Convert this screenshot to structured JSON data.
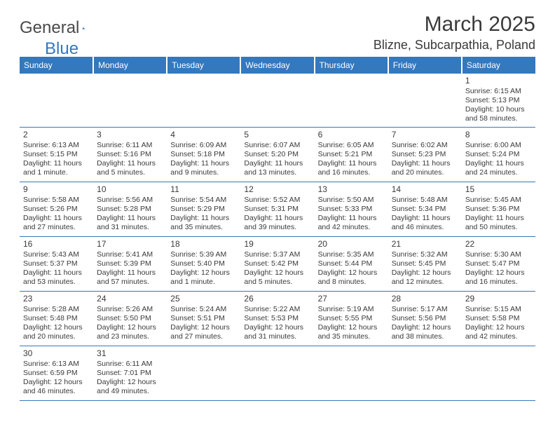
{
  "brand": {
    "name1": "General",
    "name2": "Blue"
  },
  "title": "March 2025",
  "location": "Blizne, Subcarpathia, Poland",
  "colors": {
    "header_bg": "#3478bd",
    "header_fg": "#ffffff",
    "text": "#3a3a3a",
    "rule": "#3478bd"
  },
  "weekdays": [
    "Sunday",
    "Monday",
    "Tuesday",
    "Wednesday",
    "Thursday",
    "Friday",
    "Saturday"
  ],
  "weeks": [
    [
      null,
      null,
      null,
      null,
      null,
      null,
      {
        "d": "1",
        "sr": "Sunrise: 6:15 AM",
        "ss": "Sunset: 5:13 PM",
        "dl1": "Daylight: 10 hours",
        "dl2": "and 58 minutes."
      }
    ],
    [
      {
        "d": "2",
        "sr": "Sunrise: 6:13 AM",
        "ss": "Sunset: 5:15 PM",
        "dl1": "Daylight: 11 hours",
        "dl2": "and 1 minute."
      },
      {
        "d": "3",
        "sr": "Sunrise: 6:11 AM",
        "ss": "Sunset: 5:16 PM",
        "dl1": "Daylight: 11 hours",
        "dl2": "and 5 minutes."
      },
      {
        "d": "4",
        "sr": "Sunrise: 6:09 AM",
        "ss": "Sunset: 5:18 PM",
        "dl1": "Daylight: 11 hours",
        "dl2": "and 9 minutes."
      },
      {
        "d": "5",
        "sr": "Sunrise: 6:07 AM",
        "ss": "Sunset: 5:20 PM",
        "dl1": "Daylight: 11 hours",
        "dl2": "and 13 minutes."
      },
      {
        "d": "6",
        "sr": "Sunrise: 6:05 AM",
        "ss": "Sunset: 5:21 PM",
        "dl1": "Daylight: 11 hours",
        "dl2": "and 16 minutes."
      },
      {
        "d": "7",
        "sr": "Sunrise: 6:02 AM",
        "ss": "Sunset: 5:23 PM",
        "dl1": "Daylight: 11 hours",
        "dl2": "and 20 minutes."
      },
      {
        "d": "8",
        "sr": "Sunrise: 6:00 AM",
        "ss": "Sunset: 5:24 PM",
        "dl1": "Daylight: 11 hours",
        "dl2": "and 24 minutes."
      }
    ],
    [
      {
        "d": "9",
        "sr": "Sunrise: 5:58 AM",
        "ss": "Sunset: 5:26 PM",
        "dl1": "Daylight: 11 hours",
        "dl2": "and 27 minutes."
      },
      {
        "d": "10",
        "sr": "Sunrise: 5:56 AM",
        "ss": "Sunset: 5:28 PM",
        "dl1": "Daylight: 11 hours",
        "dl2": "and 31 minutes."
      },
      {
        "d": "11",
        "sr": "Sunrise: 5:54 AM",
        "ss": "Sunset: 5:29 PM",
        "dl1": "Daylight: 11 hours",
        "dl2": "and 35 minutes."
      },
      {
        "d": "12",
        "sr": "Sunrise: 5:52 AM",
        "ss": "Sunset: 5:31 PM",
        "dl1": "Daylight: 11 hours",
        "dl2": "and 39 minutes."
      },
      {
        "d": "13",
        "sr": "Sunrise: 5:50 AM",
        "ss": "Sunset: 5:33 PM",
        "dl1": "Daylight: 11 hours",
        "dl2": "and 42 minutes."
      },
      {
        "d": "14",
        "sr": "Sunrise: 5:48 AM",
        "ss": "Sunset: 5:34 PM",
        "dl1": "Daylight: 11 hours",
        "dl2": "and 46 minutes."
      },
      {
        "d": "15",
        "sr": "Sunrise: 5:45 AM",
        "ss": "Sunset: 5:36 PM",
        "dl1": "Daylight: 11 hours",
        "dl2": "and 50 minutes."
      }
    ],
    [
      {
        "d": "16",
        "sr": "Sunrise: 5:43 AM",
        "ss": "Sunset: 5:37 PM",
        "dl1": "Daylight: 11 hours",
        "dl2": "and 53 minutes."
      },
      {
        "d": "17",
        "sr": "Sunrise: 5:41 AM",
        "ss": "Sunset: 5:39 PM",
        "dl1": "Daylight: 11 hours",
        "dl2": "and 57 minutes."
      },
      {
        "d": "18",
        "sr": "Sunrise: 5:39 AM",
        "ss": "Sunset: 5:40 PM",
        "dl1": "Daylight: 12 hours",
        "dl2": "and 1 minute."
      },
      {
        "d": "19",
        "sr": "Sunrise: 5:37 AM",
        "ss": "Sunset: 5:42 PM",
        "dl1": "Daylight: 12 hours",
        "dl2": "and 5 minutes."
      },
      {
        "d": "20",
        "sr": "Sunrise: 5:35 AM",
        "ss": "Sunset: 5:44 PM",
        "dl1": "Daylight: 12 hours",
        "dl2": "and 8 minutes."
      },
      {
        "d": "21",
        "sr": "Sunrise: 5:32 AM",
        "ss": "Sunset: 5:45 PM",
        "dl1": "Daylight: 12 hours",
        "dl2": "and 12 minutes."
      },
      {
        "d": "22",
        "sr": "Sunrise: 5:30 AM",
        "ss": "Sunset: 5:47 PM",
        "dl1": "Daylight: 12 hours",
        "dl2": "and 16 minutes."
      }
    ],
    [
      {
        "d": "23",
        "sr": "Sunrise: 5:28 AM",
        "ss": "Sunset: 5:48 PM",
        "dl1": "Daylight: 12 hours",
        "dl2": "and 20 minutes."
      },
      {
        "d": "24",
        "sr": "Sunrise: 5:26 AM",
        "ss": "Sunset: 5:50 PM",
        "dl1": "Daylight: 12 hours",
        "dl2": "and 23 minutes."
      },
      {
        "d": "25",
        "sr": "Sunrise: 5:24 AM",
        "ss": "Sunset: 5:51 PM",
        "dl1": "Daylight: 12 hours",
        "dl2": "and 27 minutes."
      },
      {
        "d": "26",
        "sr": "Sunrise: 5:22 AM",
        "ss": "Sunset: 5:53 PM",
        "dl1": "Daylight: 12 hours",
        "dl2": "and 31 minutes."
      },
      {
        "d": "27",
        "sr": "Sunrise: 5:19 AM",
        "ss": "Sunset: 5:55 PM",
        "dl1": "Daylight: 12 hours",
        "dl2": "and 35 minutes."
      },
      {
        "d": "28",
        "sr": "Sunrise: 5:17 AM",
        "ss": "Sunset: 5:56 PM",
        "dl1": "Daylight: 12 hours",
        "dl2": "and 38 minutes."
      },
      {
        "d": "29",
        "sr": "Sunrise: 5:15 AM",
        "ss": "Sunset: 5:58 PM",
        "dl1": "Daylight: 12 hours",
        "dl2": "and 42 minutes."
      }
    ],
    [
      {
        "d": "30",
        "sr": "Sunrise: 6:13 AM",
        "ss": "Sunset: 6:59 PM",
        "dl1": "Daylight: 12 hours",
        "dl2": "and 46 minutes."
      },
      {
        "d": "31",
        "sr": "Sunrise: 6:11 AM",
        "ss": "Sunset: 7:01 PM",
        "dl1": "Daylight: 12 hours",
        "dl2": "and 49 minutes."
      },
      null,
      null,
      null,
      null,
      null
    ]
  ]
}
